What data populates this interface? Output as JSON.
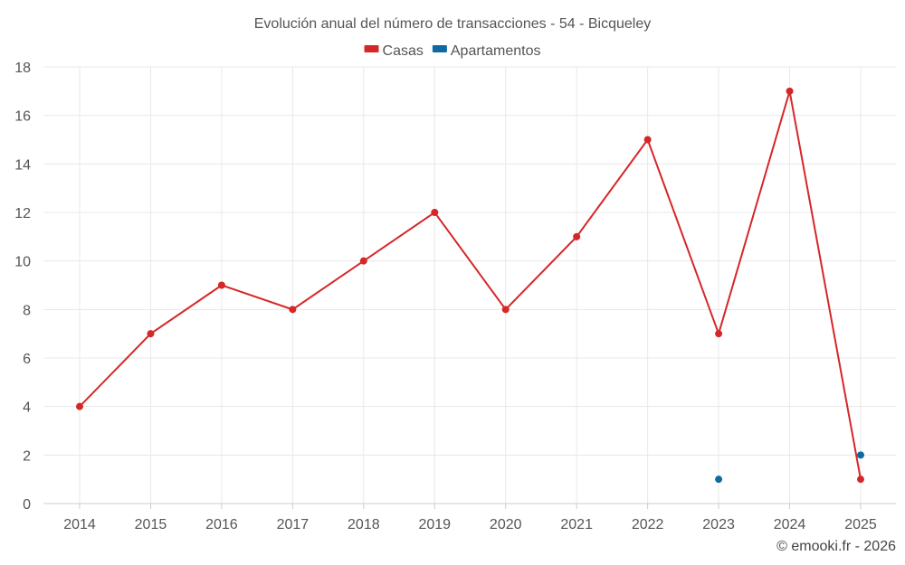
{
  "chart_data": {
    "type": "line",
    "title": "Evolución anual del número de transacciones - 54 - Bicqueley",
    "categories": [
      "2014",
      "2015",
      "2016",
      "2017",
      "2018",
      "2019",
      "2020",
      "2021",
      "2022",
      "2023",
      "2024",
      "2025"
    ],
    "series": [
      {
        "name": "Casas",
        "color": "#d62728",
        "values": [
          4,
          7,
          9,
          8,
          10,
          12,
          8,
          11,
          15,
          7,
          17,
          1
        ],
        "style": "line"
      },
      {
        "name": "Apartamentos",
        "color": "#0d6aa3",
        "values": [
          null,
          null,
          null,
          null,
          null,
          null,
          null,
          null,
          null,
          1,
          null,
          2
        ],
        "style": "points"
      }
    ],
    "ylim": [
      0,
      18
    ],
    "yticks": [
      "0",
      "2",
      "4",
      "6",
      "8",
      "10",
      "12",
      "14",
      "16",
      "18"
    ],
    "xlabel": "",
    "ylabel": "",
    "grid": true,
    "legend_position": "top-center"
  },
  "credit": "© emooki.fr - 2026"
}
